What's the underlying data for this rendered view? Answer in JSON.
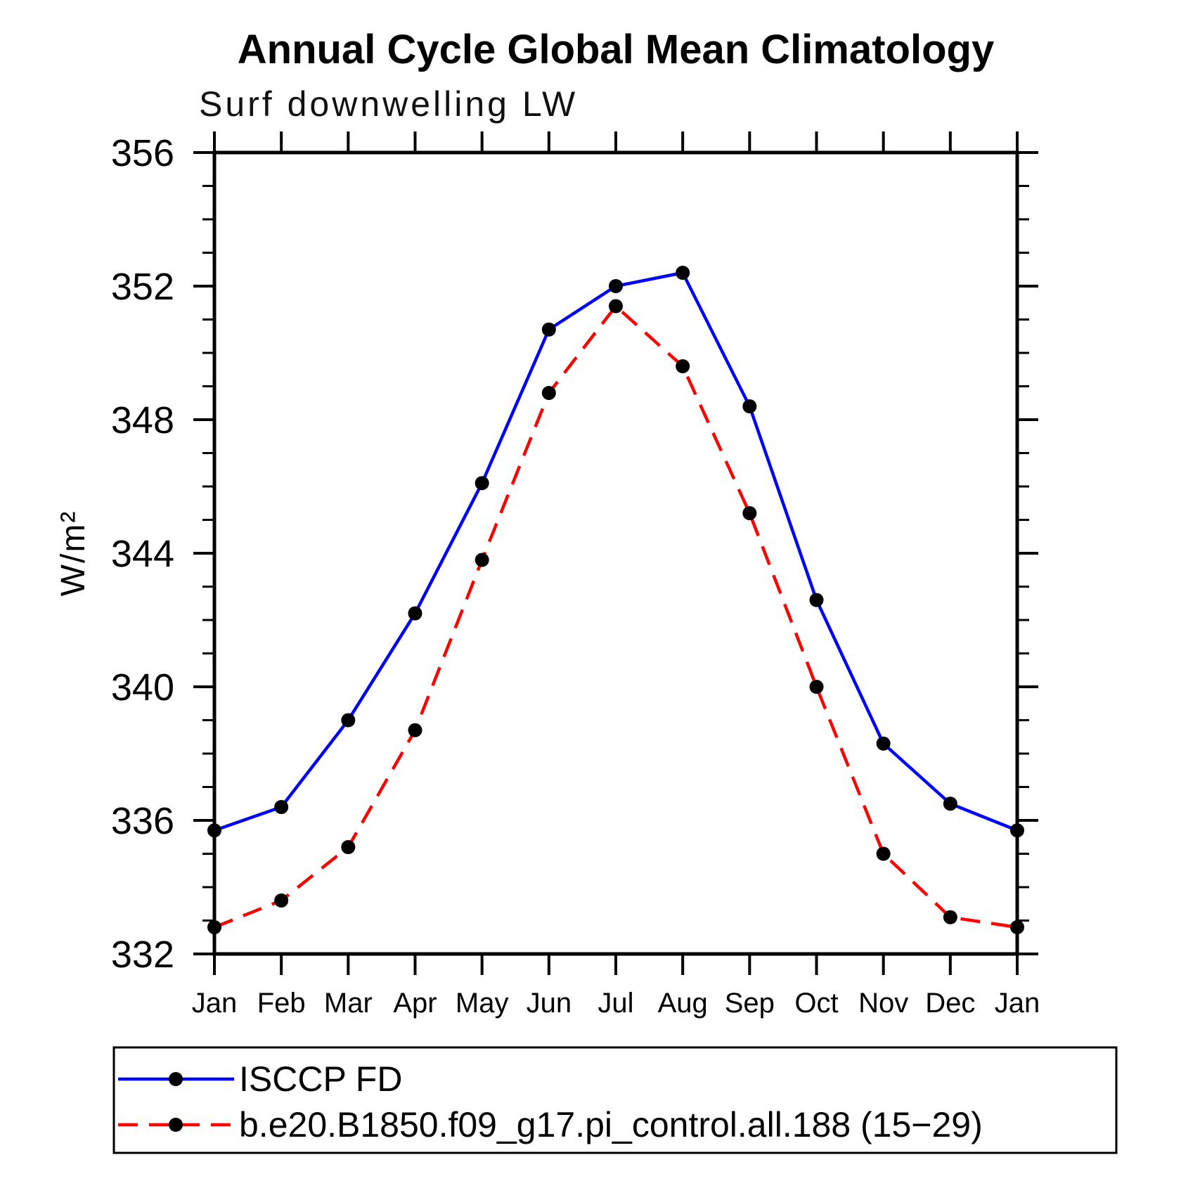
{
  "page": {
    "background": "#ffffff"
  },
  "header": {
    "title": "Annual Cycle Global Mean Climatology",
    "subtitle": "Surf downwelling LW"
  },
  "chart_data": {
    "type": "line",
    "title": "Annual Cycle Global Mean Climatology",
    "subtitle": "Surf downwelling LW",
    "xlabel": "",
    "ylabel": "W/m²",
    "x_categories": [
      "Jan",
      "Feb",
      "Mar",
      "Apr",
      "May",
      "Jun",
      "Jul",
      "Aug",
      "Sep",
      "Oct",
      "Nov",
      "Dec",
      "Jan"
    ],
    "ylim": [
      332,
      356
    ],
    "y_major_ticks": [
      332,
      336,
      340,
      344,
      348,
      352,
      356
    ],
    "y_minor_step": 1,
    "grid": false,
    "frame": true,
    "tick_direction": "out",
    "legend_position": "bottom-left-box",
    "axis_color": "#000000",
    "marker_color": "#000000",
    "series": [
      {
        "name": "ISCCP FD",
        "color": "#0000ff",
        "style": "solid",
        "marker": "circle",
        "values": [
          335.7,
          336.4,
          339.0,
          342.2,
          346.1,
          350.7,
          352.0,
          352.4,
          348.4,
          342.6,
          338.3,
          336.5,
          335.7
        ]
      },
      {
        "name": "b.e20.B1850.f09_g17.pi_control.all.188 (15−29)",
        "color": "#ff0000",
        "style": "dashed",
        "marker": "circle",
        "values": [
          332.8,
          333.6,
          335.2,
          338.7,
          343.8,
          348.8,
          351.4,
          349.6,
          345.2,
          340.0,
          335.0,
          333.1,
          332.8
        ]
      }
    ]
  }
}
